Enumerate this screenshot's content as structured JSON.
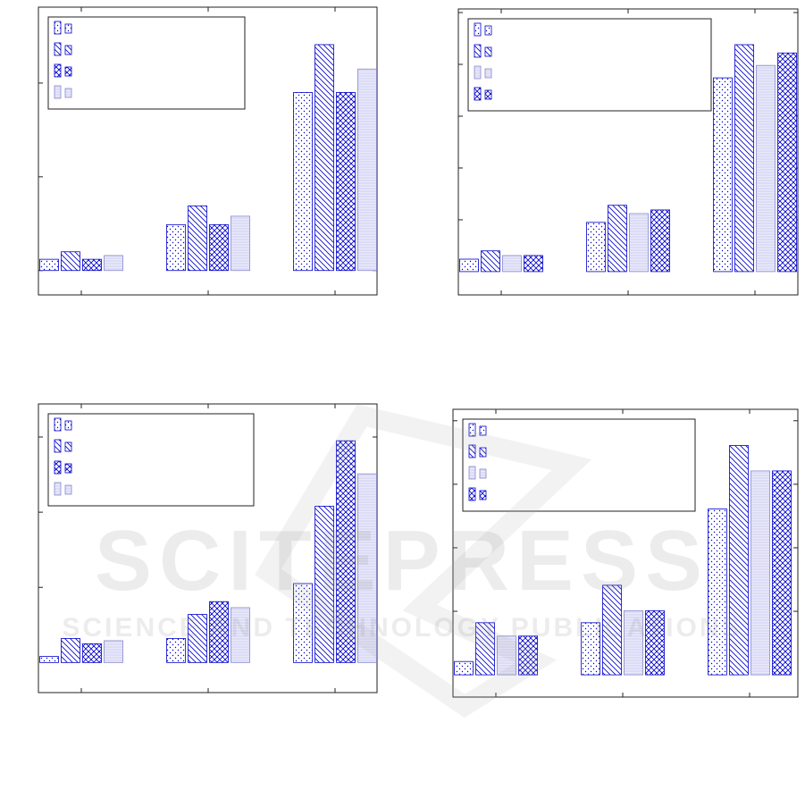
{
  "watermark": {
    "title": "SCITEPRESS",
    "subtitle": "SCIENCE AND TECHNOLOGY PUBLICATIONS"
  },
  "chart_data": [
    {
      "type": "bar",
      "categories": [
        null,
        null,
        null
      ],
      "ylim": [
        -0.26,
        2.81
      ],
      "yticks": [
        0,
        1,
        2
      ],
      "series": [
        {
          "color": "#0000cc",
          "pattern": "dots",
          "values": [
            0.12,
            0.49,
            1.9
          ]
        },
        {
          "color": "#0000cc",
          "pattern": "diagonal",
          "values": [
            0.2,
            0.69,
            2.41
          ]
        },
        {
          "color": "#0000cc",
          "pattern": "crosshatch",
          "values": [
            0.12,
            0.49,
            1.9
          ]
        },
        {
          "color": "#0000cc",
          "pattern": "light",
          "values": [
            0.16,
            0.58,
            2.15
          ]
        }
      ]
    },
    {
      "type": "bar",
      "categories": [
        null,
        null,
        null
      ],
      "ylim": [
        -0.45,
        5.07
      ],
      "yticks": [
        1,
        2,
        3,
        4,
        5
      ],
      "series": [
        {
          "color": "#0000cc",
          "pattern": "dots",
          "values": [
            0.24,
            0.95,
            3.74
          ]
        },
        {
          "color": "#0000cc",
          "pattern": "diagonal",
          "values": [
            0.4,
            1.28,
            4.38
          ]
        },
        {
          "color": "#0000cc",
          "pattern": "light",
          "values": [
            0.31,
            1.12,
            3.98
          ]
        },
        {
          "color": "#0000cc",
          "pattern": "crosshatch",
          "values": [
            0.31,
            1.19,
            4.22
          ]
        }
      ]
    },
    {
      "type": "bar",
      "categories": [
        null,
        null,
        null
      ],
      "ylim": [
        -0.4,
        3.44
      ],
      "yticks": [
        1,
        2,
        3
      ],
      "series": [
        {
          "color": "#0000cc",
          "pattern": "dots",
          "values": [
            0.08,
            0.32,
            1.05
          ]
        },
        {
          "color": "#0000cc",
          "pattern": "diagonal",
          "values": [
            0.32,
            0.64,
            2.08
          ]
        },
        {
          "color": "#0000cc",
          "pattern": "crosshatch",
          "values": [
            0.25,
            0.81,
            2.95
          ]
        },
        {
          "color": "#0000cc",
          "pattern": "light",
          "values": [
            0.29,
            0.73,
            2.51
          ]
        }
      ]
    },
    {
      "type": "bar",
      "categories": [
        null,
        null,
        null
      ],
      "ylim": [
        -0.35,
        4.18
      ],
      "yticks": [
        1,
        2,
        3,
        4
      ],
      "series": [
        {
          "color": "#0000cc",
          "pattern": "dots",
          "values": [
            0.21,
            0.82,
            2.61
          ]
        },
        {
          "color": "#0000cc",
          "pattern": "diagonal",
          "values": [
            0.82,
            1.41,
            3.61
          ]
        },
        {
          "color": "#0000cc",
          "pattern": "light",
          "values": [
            0.61,
            1.01,
            3.21
          ]
        },
        {
          "color": "#0000cc",
          "pattern": "crosshatch",
          "values": [
            0.61,
            1.01,
            3.21
          ]
        }
      ]
    }
  ]
}
